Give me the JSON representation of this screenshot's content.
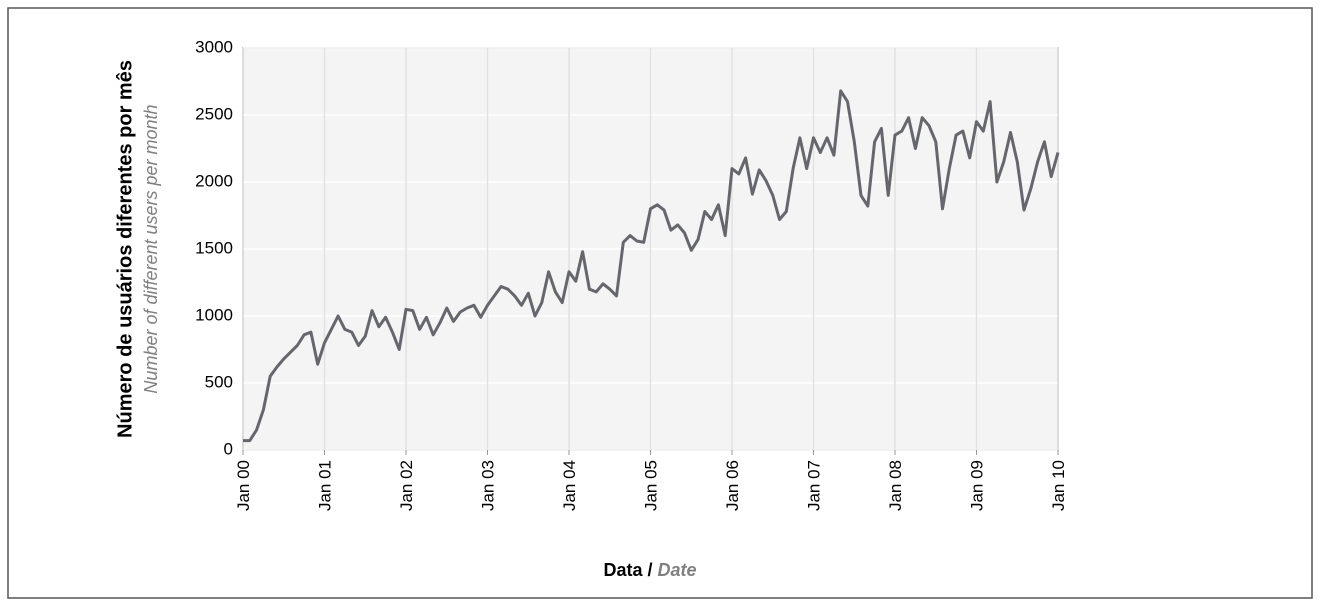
{
  "chart_data": {
    "type": "line",
    "y_label": "Número de usuários diferentes por mês",
    "y_label_en": "Number of different users per month",
    "x_label": "Data /",
    "x_label_en": "Date",
    "x": [
      "Jan 00",
      "Feb 00",
      "Mar 00",
      "Apr 00",
      "May 00",
      "Jun 00",
      "Jul 00",
      "Aug 00",
      "Sep 00",
      "Oct 00",
      "Nov 00",
      "Dec 00",
      "Jan 01",
      "Feb 01",
      "Mar 01",
      "Apr 01",
      "May 01",
      "Jun 01",
      "Jul 01",
      "Aug 01",
      "Sep 01",
      "Oct 01",
      "Nov 01",
      "Dec 01",
      "Jan 02",
      "Feb 02",
      "Mar 02",
      "Apr 02",
      "May 02",
      "Jun 02",
      "Jul 02",
      "Aug 02",
      "Sep 02",
      "Oct 02",
      "Nov 02",
      "Dec 02",
      "Jan 03",
      "Feb 03",
      "Mar 03",
      "Apr 03",
      "May 03",
      "Jun 03",
      "Jul 03",
      "Aug 03",
      "Sep 03",
      "Oct 03",
      "Nov 03",
      "Dec 03",
      "Jan 04",
      "Feb 04",
      "Mar 04",
      "Apr 04",
      "May 04",
      "Jun 04",
      "Jul 04",
      "Aug 04",
      "Sep 04",
      "Oct 04",
      "Nov 04",
      "Dec 04",
      "Jan 05",
      "Feb 05",
      "Mar 05",
      "Apr 05",
      "May 05",
      "Jun 05",
      "Jul 05",
      "Aug 05",
      "Sep 05",
      "Oct 05",
      "Nov 05",
      "Dec 05",
      "Jan 06",
      "Feb 06",
      "Mar 06",
      "Apr 06",
      "May 06",
      "Jun 06",
      "Jul 06",
      "Aug 06",
      "Sep 06",
      "Oct 06",
      "Nov 06",
      "Dec 06",
      "Jan 07",
      "Feb 07",
      "Mar 07",
      "Apr 07",
      "May 07",
      "Jun 07",
      "Jul 07",
      "Aug 07",
      "Sep 07",
      "Oct 07",
      "Nov 07",
      "Dec 07",
      "Jan 08",
      "Feb 08",
      "Mar 08",
      "Apr 08",
      "May 08",
      "Jun 08",
      "Jul 08",
      "Aug 08",
      "Sep 08",
      "Oct 08",
      "Nov 08",
      "Dec 08",
      "Jan 09",
      "Feb 09",
      "Mar 09",
      "Apr 09",
      "May 09",
      "Jun 09",
      "Jul 09",
      "Aug 09",
      "Sep 09",
      "Oct 09",
      "Nov 09",
      "Dec 09",
      "Jan 10"
    ],
    "series": [
      {
        "color": "#66676c",
        "values": [
          70,
          70,
          150,
          300,
          550,
          620,
          680,
          730,
          780,
          860,
          880,
          640,
          800,
          900,
          1000,
          900,
          880,
          780,
          850,
          1040,
          920,
          990,
          880,
          750,
          1050,
          1040,
          900,
          990,
          860,
          950,
          1060,
          960,
          1030,
          1060,
          1080,
          990,
          1080,
          1150,
          1220,
          1200,
          1150,
          1080,
          1170,
          1000,
          1100,
          1330,
          1180,
          1100,
          1330,
          1260,
          1480,
          1200,
          1180,
          1240,
          1200,
          1150,
          1550,
          1600,
          1560,
          1550,
          1800,
          1830,
          1790,
          1640,
          1680,
          1620,
          1490,
          1570,
          1780,
          1720,
          1830,
          1600,
          2100,
          2060,
          2180,
          1910,
          2090,
          2010,
          1900,
          1720,
          1780,
          2100,
          2330,
          2100,
          2330,
          2220,
          2330,
          2200,
          2680,
          2600,
          2300,
          1900,
          1820,
          2300,
          2400,
          1900,
          2350,
          2380,
          2480,
          2250,
          2480,
          2420,
          2300,
          1800,
          2100,
          2350,
          2380,
          2180,
          2450,
          2380,
          2600,
          2000,
          2150,
          2370,
          2150,
          1790,
          1950,
          2150,
          2300,
          2040,
          2220
        ]
      }
    ],
    "xticks": [
      "Jan 00",
      "Jan 01",
      "Jan 02",
      "Jan 03",
      "Jan 04",
      "Jan 05",
      "Jan 06",
      "Jan 07",
      "Jan 08",
      "Jan 09",
      "Jan 10"
    ],
    "ylim": [
      0,
      3000
    ],
    "yticks": [
      0,
      500,
      1000,
      1500,
      2000,
      2500,
      3000
    ],
    "grid": true
  }
}
